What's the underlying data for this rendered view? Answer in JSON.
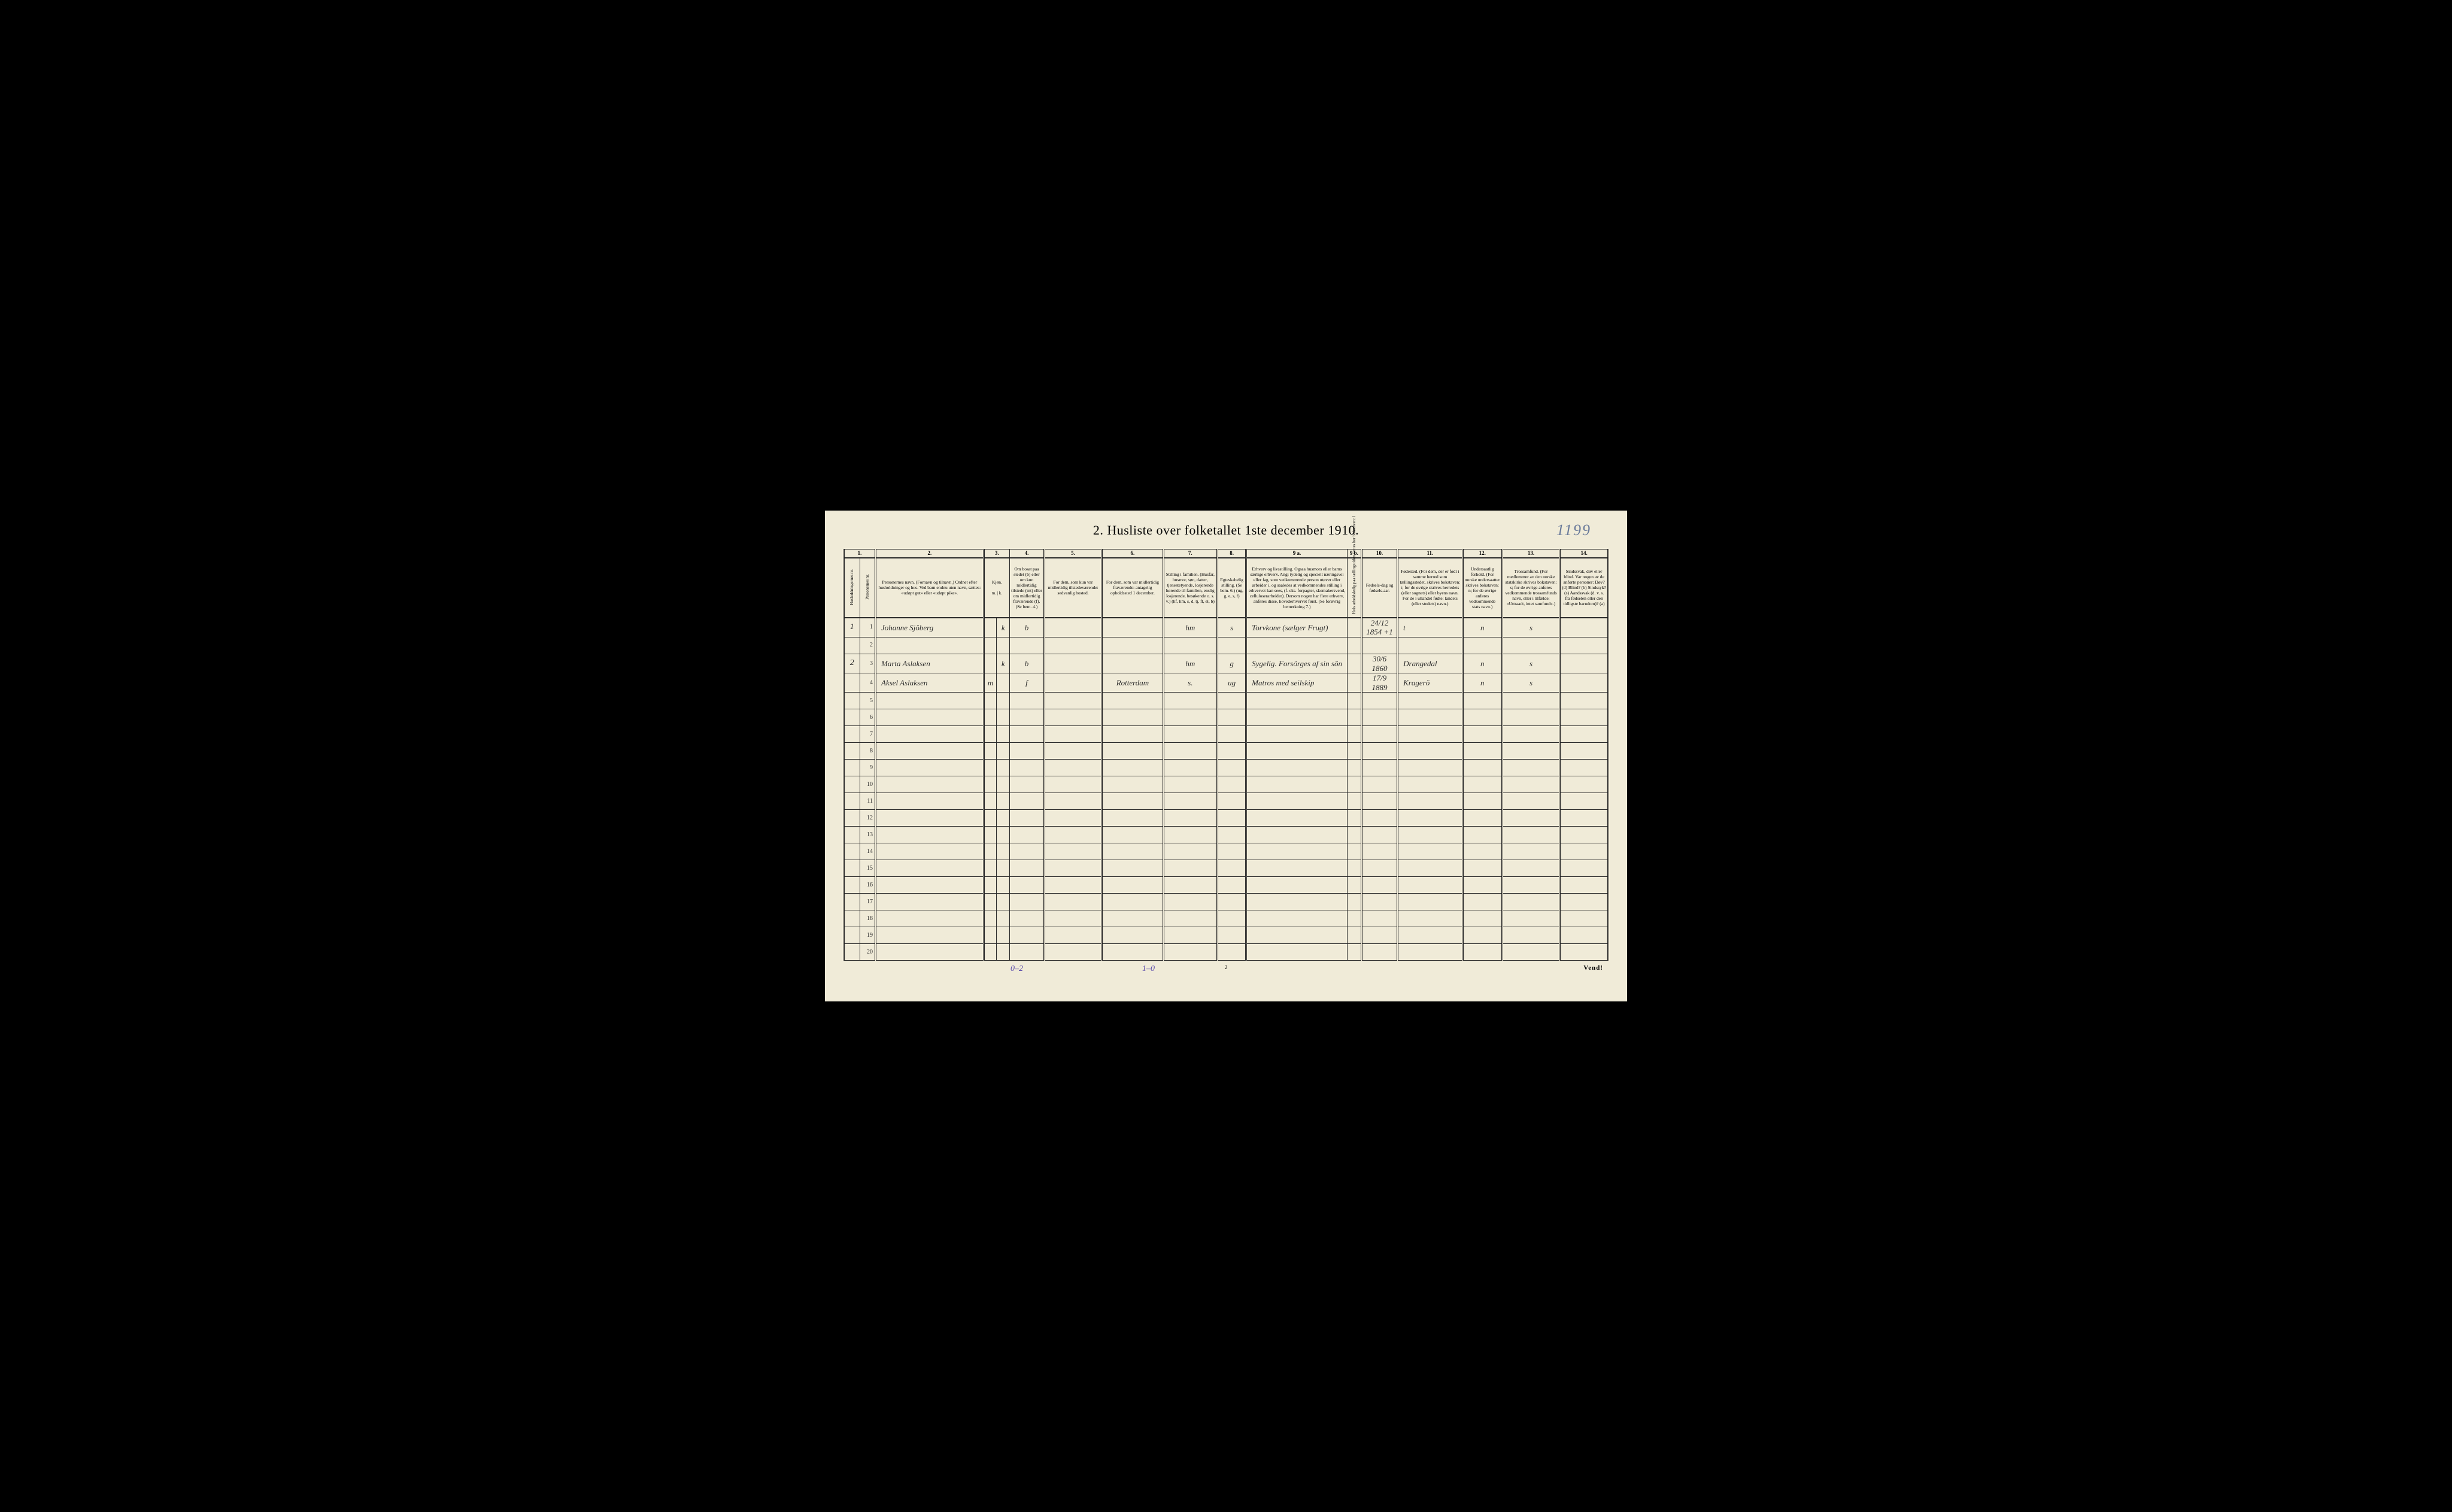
{
  "page_number_handwritten": "1199",
  "title": "2.  Husliste over folketallet 1ste december 1910.",
  "column_numbers": [
    "1.",
    "",
    "2.",
    "3.",
    "",
    "4.",
    "5.",
    "6.",
    "7.",
    "8.",
    "9 a.",
    "9 b.",
    "10.",
    "11.",
    "12.",
    "13.",
    "14."
  ],
  "headers": {
    "c1": "Husholdningernes nr.",
    "c1b": "Personernes nr.",
    "c2": "Personernes navn.\n(Fornavn og tilnavn.)\nOrdnet efter husholdninger og hus.\nVed barn endnu uten navn, sættes: «udøpt gut» eller «udøpt pike».",
    "c3": "Kjøn.",
    "c3a": "Mænd.",
    "c3b": "Kvinder.",
    "c4": "Om bosat paa stedet (b) eller om kun midlertidig tilstede (mt) eller om midlertidig fraværende (f). (Se bem. 4.)",
    "c5": "For dem, som kun var midlertidig tilstedeværende:\nsedvanlig bosted.",
    "c6": "For dem, som var midlertidig fraværende:\nantagelig opholdssted 1 december.",
    "c7": "Stilling i familien.\n(Husfar, husmor, søn, datter, tjenestetyende, losjerende hørende til familien, enslig losjerende, besøkende o. s. v.)\n(hf, hm, s, d, tj, fl, el, b)",
    "c8": "Egteskabelig stilling.\n(Se bem. 6.)\n(ug, g, e, s, f)",
    "c9a": "Erhverv og livsstilling.\nOgsaa husmors eller barns særlige erhverv.\nAngi tydelig og specielt næringsvei eller fag, som vedkommende person utøver eller arbeider i, og saaledes at vedkommendes stilling i erhvervet kan sees, (f. eks. forpagter, skomakersvend, celluloserarbeider). Dersom nogen har flere erhverv, anføres disse, hovederhvervet først.\n(Se forøvrig bemerkning 7.)",
    "c9b": "Hvis arbeidsledig paa tællingstiden sættes her bokstaven: l",
    "c10": "Fødsels-dag og fødsels-aar.",
    "c11": "Fødested.\n(For dem, der er født i samme herred som tællingsstedet, skrives bokstaven: t; for de øvrige skrives herredets (eller sognets) eller byens navn. For de i utlandet fødte: landets (eller stedets) navn.)",
    "c12": "Undersaatlig forhold.\n(For norske undersaatter skrives bokstaven: n; for de øvrige anføres vedkommende stats navn.)",
    "c13": "Trossamfund.\n(For medlemmer av den norske statskirke skrives bokstaven: s; for de øvrige anføres vedkommende trossamfunds navn, eller i tilfælde: «Uttraadt, intet samfund».)",
    "c14": "Sindssvak, døv eller blind.\nVar nogen av de anførte personer:\nDøv?       (d)\nBlind?     (b)\nSindssyk? (s)\nAandssvak (d. v. s. fra fødselen eller den tidligste barndom)? (a)"
  },
  "rows": [
    {
      "hh": "1",
      "pn": "1",
      "name": "Johanne Sjöberg",
      "m": "",
      "k": "k",
      "res": "b",
      "c5": "",
      "c6": "",
      "c7": "hm",
      "c8": "s",
      "c9a": "Torvkone (sælger Frugt)",
      "c9b": "",
      "c10": "24/12 1854",
      "c10b": "+1",
      "c11": "t",
      "c12": "n",
      "c13": "s",
      "c14": ""
    },
    {
      "hh": "",
      "pn": "2",
      "name": "",
      "m": "",
      "k": "",
      "res": "",
      "c5": "",
      "c6": "",
      "c7": "",
      "c8": "",
      "c9a": "",
      "c9b": "",
      "c10": "",
      "c10b": "",
      "c11": "",
      "c12": "",
      "c13": "",
      "c14": ""
    },
    {
      "hh": "2",
      "pn": "3",
      "name": "Marta Aslaksen",
      "m": "",
      "k": "k",
      "res": "b",
      "c5": "",
      "c6": "",
      "c7": "hm",
      "c8": "g",
      "c9a": "Sygelig. Forsörges af sin sön",
      "c9b": "",
      "c10": "30/6 1860",
      "c10b": "",
      "c11": "Drangedal",
      "c12": "n",
      "c13": "s",
      "c14": ""
    },
    {
      "hh": "",
      "pn": "4",
      "name": "Aksel Aslaksen",
      "m": "m",
      "k": "",
      "res": "f",
      "c5": "",
      "c6": "Rotterdam",
      "c7": "s.",
      "c8": "ug",
      "c9a": "Matros med seilskip",
      "c9b": "",
      "c10": "17/9 1889",
      "c10b": "",
      "c11": "Kragerö",
      "c12": "n",
      "c13": "s",
      "c14": ""
    }
  ],
  "empty_rows": [
    5,
    6,
    7,
    8,
    9,
    10,
    11,
    12,
    13,
    14,
    15,
    16,
    17,
    18,
    19,
    20
  ],
  "footer": {
    "left": "0–2",
    "mid": "1–0",
    "page": "2",
    "right": "Vend!"
  },
  "colors": {
    "paper": "#f0ebd8",
    "ink": "#2a2a2a",
    "pencil_blue": "#6a7a9a",
    "pencil_purple": "#5a4aaa",
    "background": "#000000"
  },
  "column_widths_pct": [
    2.2,
    2.2,
    15,
    1.8,
    1.8,
    4.8,
    8,
    8.5,
    7.5,
    4,
    14,
    2,
    5,
    9,
    5.5,
    8,
    6.7
  ]
}
